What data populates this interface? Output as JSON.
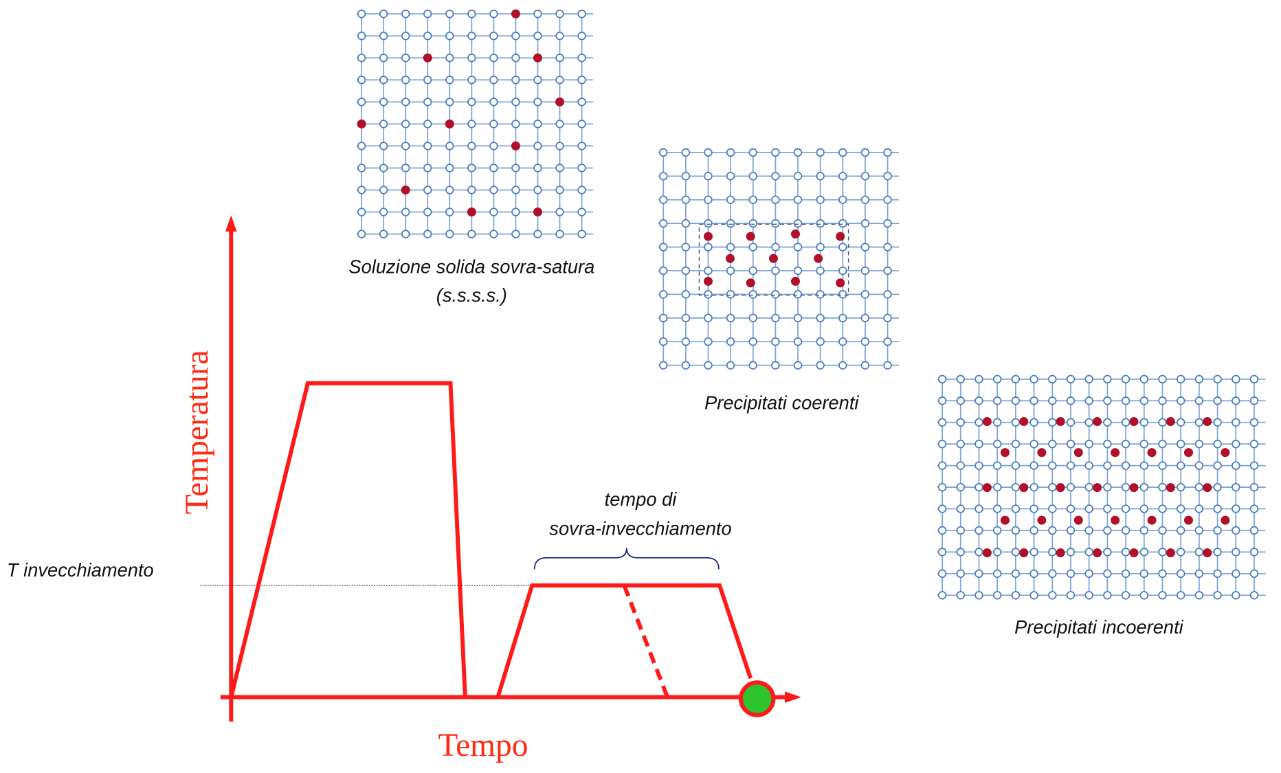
{
  "lattices": [
    {
      "caption": [
        "Soluzione solida sovra-satura",
        "(s.s.s.s.)"
      ]
    },
    {
      "caption": [
        "Precipitati coerenti"
      ]
    },
    {
      "caption": [
        "Precipitati incoerenti"
      ]
    }
  ],
  "chart": {
    "y_axis_label": "Temperatura",
    "x_axis_label": "Tempo",
    "level_label": "T invecchiamento",
    "brace_label": [
      "tempo di",
      "sovra-invecchiamento"
    ]
  }
}
